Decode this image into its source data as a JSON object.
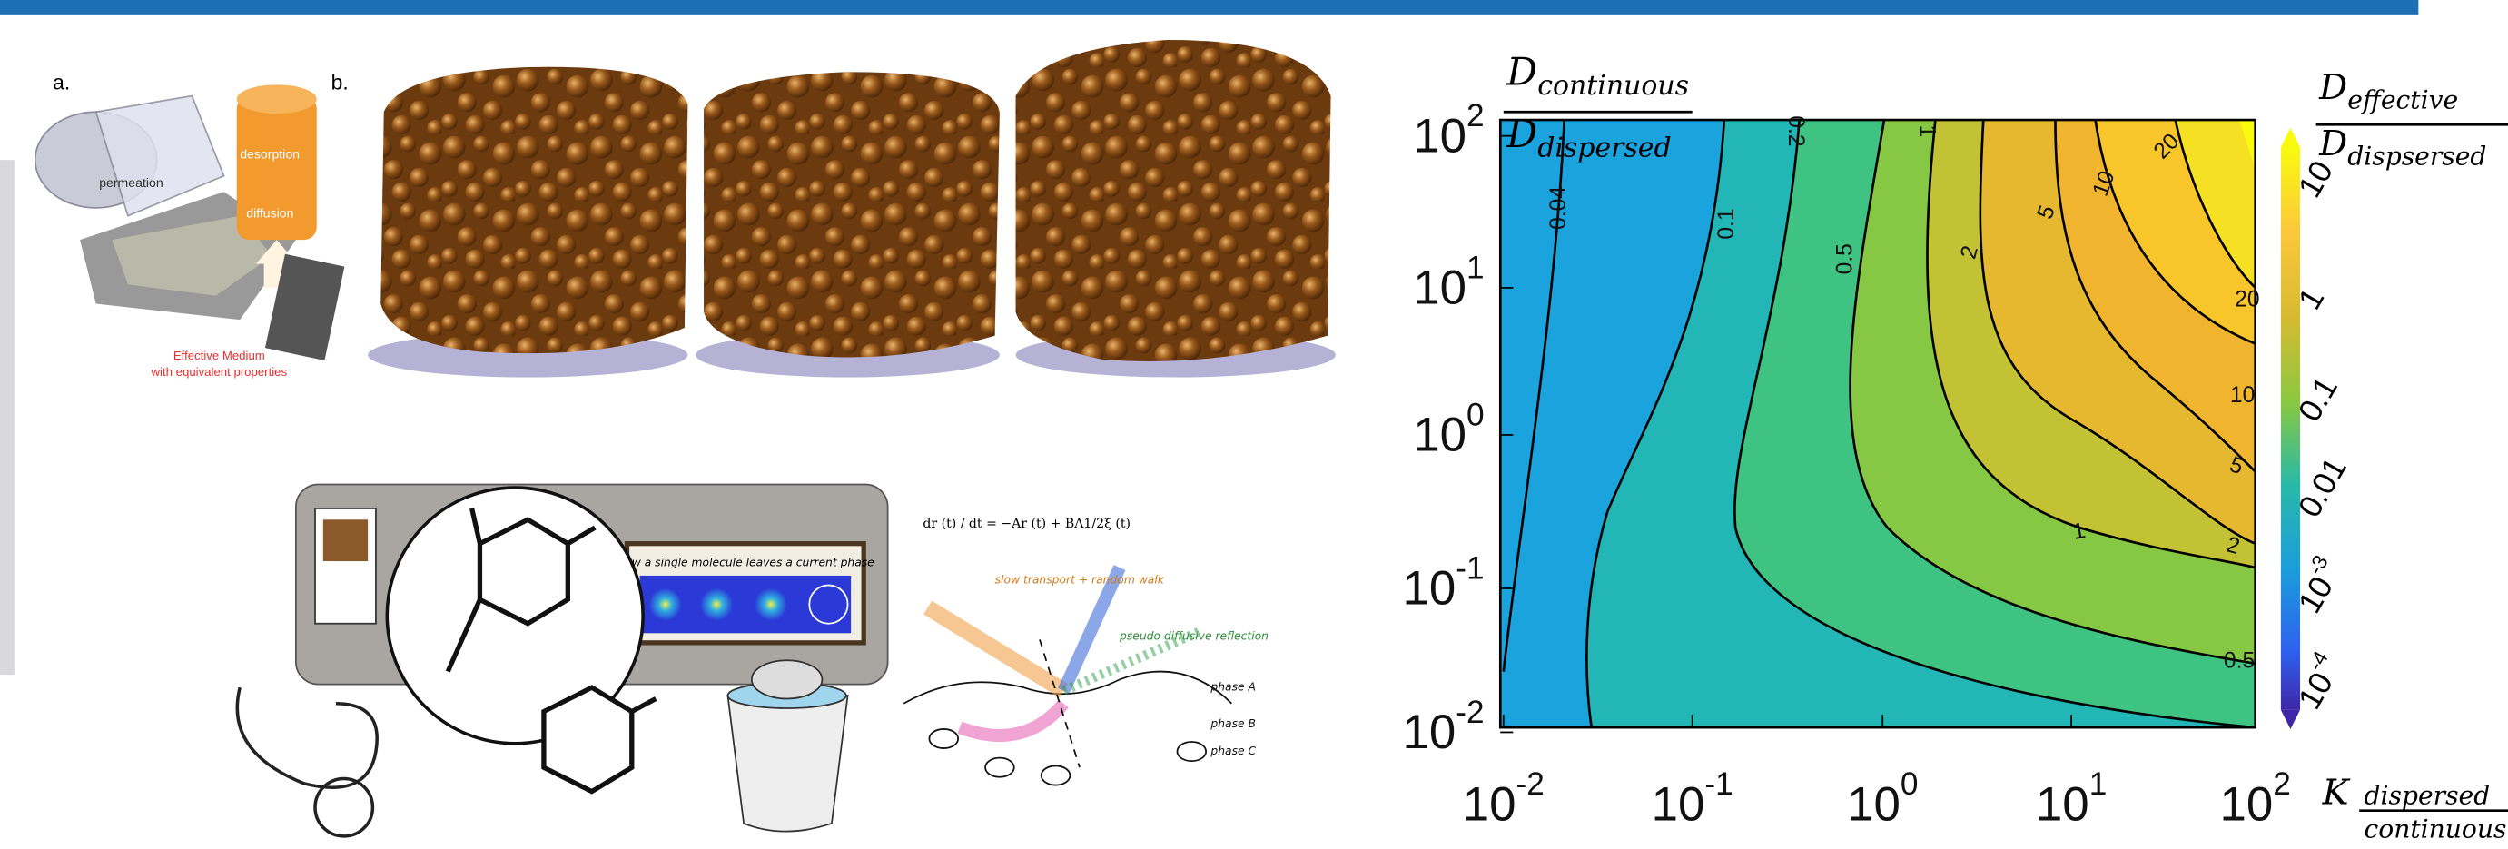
{
  "panel_a": {
    "label": "a.",
    "permeation": "permeation",
    "desorption": "desorption",
    "diffusion": "diffusion",
    "caption": [
      "Effective Medium",
      "with equivalent properties"
    ]
  },
  "panel_b": {
    "label": "b."
  },
  "illustration": {
    "frame_title": "How a single molecule leaves a current phase"
  },
  "diagram": {
    "equation": "dr (t) / dt = −Ar (t) + BΛ1/2ξ (t)",
    "annotations": [
      "slow transport + random walk",
      "pseudo diffusive reflection"
    ],
    "phases": [
      "phase A",
      "phase B",
      "phase C"
    ]
  },
  "contour_plot": {
    "y_title": {
      "numerator": "D",
      "numerator_sub": "continuous",
      "denominator": "D",
      "denominator_sub": "dispersed"
    },
    "colorbar_title": {
      "numerator": "D",
      "numerator_sub": "effective",
      "denominator": "D",
      "denominator_sub": "dispsersed"
    },
    "x_title": {
      "symbol": "K",
      "numerator_sub": "dispersed",
      "denominator_sub": "continuous"
    },
    "yticks": [
      {
        "base": "10",
        "exp": "2"
      },
      {
        "base": "10",
        "exp": "1"
      },
      {
        "base": "10",
        "exp": "0"
      },
      {
        "base": "10",
        "exp": "-1"
      },
      {
        "base": "10",
        "exp": "-2"
      }
    ],
    "xticks": [
      {
        "base": "10",
        "exp": "-2"
      },
      {
        "base": "10",
        "exp": "-1"
      },
      {
        "base": "10",
        "exp": "0"
      },
      {
        "base": "10",
        "exp": "1"
      },
      {
        "base": "10",
        "exp": "2"
      }
    ],
    "contour_labels": [
      "0.04",
      "0.1",
      "0.2",
      "1",
      "0.5",
      "2",
      "5",
      "10",
      "20",
      "20",
      "10",
      "5",
      "2",
      "1",
      "0.5"
    ],
    "colorbar_ticks": [
      {
        "base": "10"
      },
      {
        "base": "1"
      },
      {
        "base": "0.1"
      },
      {
        "base": "0.01"
      },
      {
        "base": "10",
        "exp": "-3"
      },
      {
        "base": "10",
        "exp": "-4"
      }
    ]
  }
}
